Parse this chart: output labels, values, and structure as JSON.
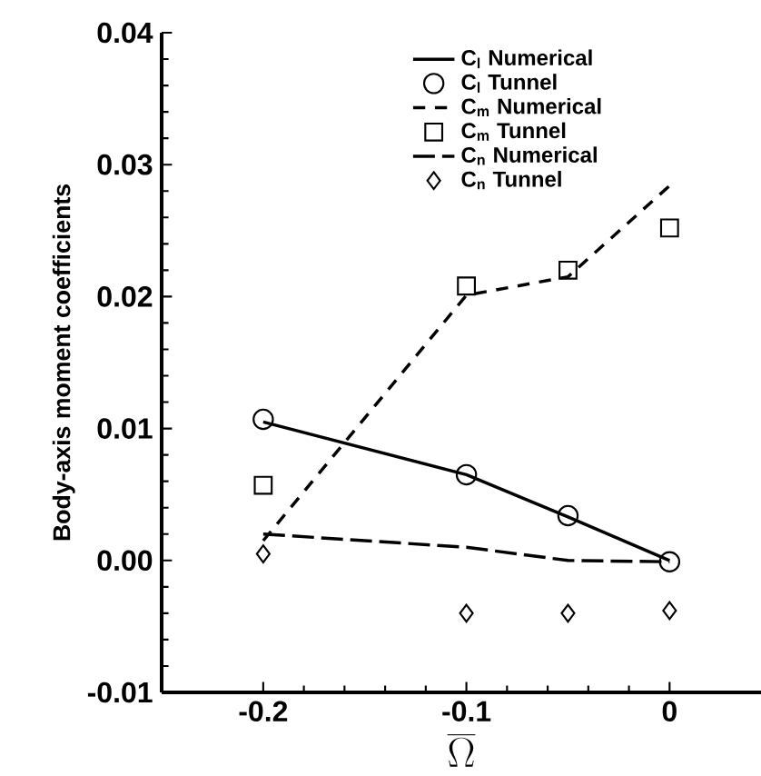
{
  "chart_data": {
    "type": "line",
    "xlabel": "\\overline{\\Omega}",
    "ylabel": "Body-axis moment coefficients",
    "xlim": [
      -0.25,
      0.045
    ],
    "xticks": [
      -0.2,
      -0.1,
      0
    ],
    "ylim": [
      -0.01,
      0.04
    ],
    "yticks": [
      -0.01,
      {
        "value": 0,
        "label": "0.00"
      },
      0.01,
      0.02,
      0.03,
      0.04
    ],
    "legend": "top",
    "grid": false,
    "series": [
      {
        "name": "C$_{l}$ Numerical",
        "line_style": "solid",
        "marker": "none",
        "color": "#000000",
        "x": [
          -0.2,
          -0.1,
          -0.05,
          0
        ],
        "values": [
          0.0105,
          0.0065,
          0.0033,
          0.0
        ]
      },
      {
        "name": "C$_{l}$ Tunnel",
        "type": "scatter",
        "marker": "circle",
        "color": "#000000",
        "x": [
          -0.2,
          -0.1,
          -0.05,
          0
        ],
        "values": [
          0.0107,
          0.0065,
          0.0034,
          -0.0001
        ]
      },
      {
        "name": "C$_{m}$ Numerical",
        "line_style": "dashed",
        "marker": "none",
        "color": "#000000",
        "x": [
          -0.2,
          -0.1,
          -0.05,
          0
        ],
        "values": [
          0.0015,
          0.0201,
          0.0215,
          0.0284
        ]
      },
      {
        "name": "C$_{m}$ Tunnel",
        "type": "scatter",
        "marker": "square",
        "color": "#000000",
        "x": [
          -0.2,
          -0.1,
          -0.05,
          0
        ],
        "values": [
          0.0057,
          0.0208,
          0.022,
          0.0252
        ]
      },
      {
        "name": "C$_{n}$ Numerical",
        "line_style": "dashed",
        "marker": "none",
        "color": "#000000",
        "x": [
          -0.2,
          -0.1,
          -0.05,
          0
        ],
        "values": [
          0.002,
          0.001,
          0.0,
          -0.0001
        ]
      },
      {
        "name": "C$_{n}$ Tunnel",
        "type": "scatter",
        "marker": "diamond",
        "color": "#000000",
        "x": [
          -0.2,
          -0.1,
          -0.05,
          0
        ],
        "values": [
          0.0005,
          -0.004,
          -0.004,
          -0.0038
        ]
      }
    ]
  }
}
